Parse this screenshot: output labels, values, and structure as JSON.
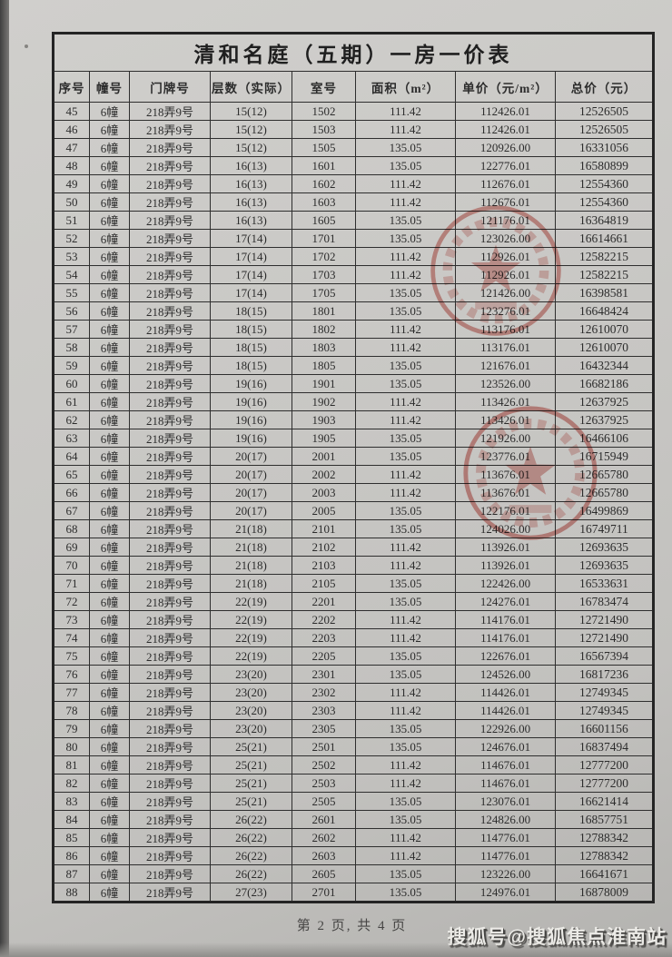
{
  "page": {
    "title": "清和名庭（五期）一房一价表",
    "footer": {
      "page_indicator": "第 2 页, 共 4 页"
    },
    "watermark": "搜狐号@搜狐焦点淮南站"
  },
  "table": {
    "headers": [
      "序号",
      "幢号",
      "门牌号",
      "层数（实际）",
      "室号",
      "面积（m²）",
      "单价（元/m²）",
      "总价（元）"
    ],
    "rows": [
      [
        "45",
        "6幢",
        "218弄9号",
        "15(12)",
        "1502",
        "111.42",
        "112426.01",
        "12526505"
      ],
      [
        "46",
        "6幢",
        "218弄9号",
        "15(12)",
        "1503",
        "111.42",
        "112426.01",
        "12526505"
      ],
      [
        "47",
        "6幢",
        "218弄9号",
        "15(12)",
        "1505",
        "135.05",
        "120926.00",
        "16331056"
      ],
      [
        "48",
        "6幢",
        "218弄9号",
        "16(13)",
        "1601",
        "135.05",
        "122776.01",
        "16580899"
      ],
      [
        "49",
        "6幢",
        "218弄9号",
        "16(13)",
        "1602",
        "111.42",
        "112676.01",
        "12554360"
      ],
      [
        "50",
        "6幢",
        "218弄9号",
        "16(13)",
        "1603",
        "111.42",
        "112676.01",
        "12554360"
      ],
      [
        "51",
        "6幢",
        "218弄9号",
        "16(13)",
        "1605",
        "135.05",
        "121176.01",
        "16364819"
      ],
      [
        "52",
        "6幢",
        "218弄9号",
        "17(14)",
        "1701",
        "135.05",
        "123026.00",
        "16614661"
      ],
      [
        "53",
        "6幢",
        "218弄9号",
        "17(14)",
        "1702",
        "111.42",
        "112926.01",
        "12582215"
      ],
      [
        "54",
        "6幢",
        "218弄9号",
        "17(14)",
        "1703",
        "111.42",
        "112926.01",
        "12582215"
      ],
      [
        "55",
        "6幢",
        "218弄9号",
        "17(14)",
        "1705",
        "135.05",
        "121426.00",
        "16398581"
      ],
      [
        "56",
        "6幢",
        "218弄9号",
        "18(15)",
        "1801",
        "135.05",
        "123276.01",
        "16648424"
      ],
      [
        "57",
        "6幢",
        "218弄9号",
        "18(15)",
        "1802",
        "111.42",
        "113176.01",
        "12610070"
      ],
      [
        "58",
        "6幢",
        "218弄9号",
        "18(15)",
        "1803",
        "111.42",
        "113176.01",
        "12610070"
      ],
      [
        "59",
        "6幢",
        "218弄9号",
        "18(15)",
        "1805",
        "135.05",
        "121676.01",
        "16432344"
      ],
      [
        "60",
        "6幢",
        "218弄9号",
        "19(16)",
        "1901",
        "135.05",
        "123526.00",
        "16682186"
      ],
      [
        "61",
        "6幢",
        "218弄9号",
        "19(16)",
        "1902",
        "111.42",
        "113426.01",
        "12637925"
      ],
      [
        "62",
        "6幢",
        "218弄9号",
        "19(16)",
        "1903",
        "111.42",
        "113426.01",
        "12637925"
      ],
      [
        "63",
        "6幢",
        "218弄9号",
        "19(16)",
        "1905",
        "135.05",
        "121926.00",
        "16466106"
      ],
      [
        "64",
        "6幢",
        "218弄9号",
        "20(17)",
        "2001",
        "135.05",
        "123776.01",
        "16715949"
      ],
      [
        "65",
        "6幢",
        "218弄9号",
        "20(17)",
        "2002",
        "111.42",
        "113676.01",
        "12665780"
      ],
      [
        "66",
        "6幢",
        "218弄9号",
        "20(17)",
        "2003",
        "111.42",
        "113676.01",
        "12665780"
      ],
      [
        "67",
        "6幢",
        "218弄9号",
        "20(17)",
        "2005",
        "135.05",
        "122176.01",
        "16499869"
      ],
      [
        "68",
        "6幢",
        "218弄9号",
        "21(18)",
        "2101",
        "135.05",
        "124026.00",
        "16749711"
      ],
      [
        "69",
        "6幢",
        "218弄9号",
        "21(18)",
        "2102",
        "111.42",
        "113926.01",
        "12693635"
      ],
      [
        "70",
        "6幢",
        "218弄9号",
        "21(18)",
        "2103",
        "111.42",
        "113926.01",
        "12693635"
      ],
      [
        "71",
        "6幢",
        "218弄9号",
        "21(18)",
        "2105",
        "135.05",
        "122426.00",
        "16533631"
      ],
      [
        "72",
        "6幢",
        "218弄9号",
        "22(19)",
        "2201",
        "135.05",
        "124276.01",
        "16783474"
      ],
      [
        "73",
        "6幢",
        "218弄9号",
        "22(19)",
        "2202",
        "111.42",
        "114176.01",
        "12721490"
      ],
      [
        "74",
        "6幢",
        "218弄9号",
        "22(19)",
        "2203",
        "111.42",
        "114176.01",
        "12721490"
      ],
      [
        "75",
        "6幢",
        "218弄9号",
        "22(19)",
        "2205",
        "135.05",
        "122676.01",
        "16567394"
      ],
      [
        "76",
        "6幢",
        "218弄9号",
        "23(20)",
        "2301",
        "135.05",
        "124526.00",
        "16817236"
      ],
      [
        "77",
        "6幢",
        "218弄9号",
        "23(20)",
        "2302",
        "111.42",
        "114426.01",
        "12749345"
      ],
      [
        "78",
        "6幢",
        "218弄9号",
        "23(20)",
        "2303",
        "111.42",
        "114426.01",
        "12749345"
      ],
      [
        "79",
        "6幢",
        "218弄9号",
        "23(20)",
        "2305",
        "135.05",
        "122926.00",
        "16601156"
      ],
      [
        "80",
        "6幢",
        "218弄9号",
        "25(21)",
        "2501",
        "135.05",
        "124676.01",
        "16837494"
      ],
      [
        "81",
        "6幢",
        "218弄9号",
        "25(21)",
        "2502",
        "111.42",
        "114676.01",
        "12777200"
      ],
      [
        "82",
        "6幢",
        "218弄9号",
        "25(21)",
        "2503",
        "111.42",
        "114676.01",
        "12777200"
      ],
      [
        "83",
        "6幢",
        "218弄9号",
        "25(21)",
        "2505",
        "135.05",
        "123076.01",
        "16621414"
      ],
      [
        "84",
        "6幢",
        "218弄9号",
        "26(22)",
        "2601",
        "135.05",
        "124826.00",
        "16857751"
      ],
      [
        "85",
        "6幢",
        "218弄9号",
        "26(22)",
        "2602",
        "111.42",
        "114776.01",
        "12788342"
      ],
      [
        "86",
        "6幢",
        "218弄9号",
        "26(22)",
        "2603",
        "111.42",
        "114776.01",
        "12788342"
      ],
      [
        "87",
        "6幢",
        "218弄9号",
        "26(22)",
        "2605",
        "135.05",
        "123226.00",
        "16641671"
      ],
      [
        "88",
        "6幢",
        "218弄9号",
        "27(23)",
        "2701",
        "135.05",
        "124976.01",
        "16878009"
      ]
    ]
  },
  "colors": {
    "stamp_red": "#c0392f",
    "ink": "#2e2e2e",
    "paper": "#cac9c6"
  }
}
